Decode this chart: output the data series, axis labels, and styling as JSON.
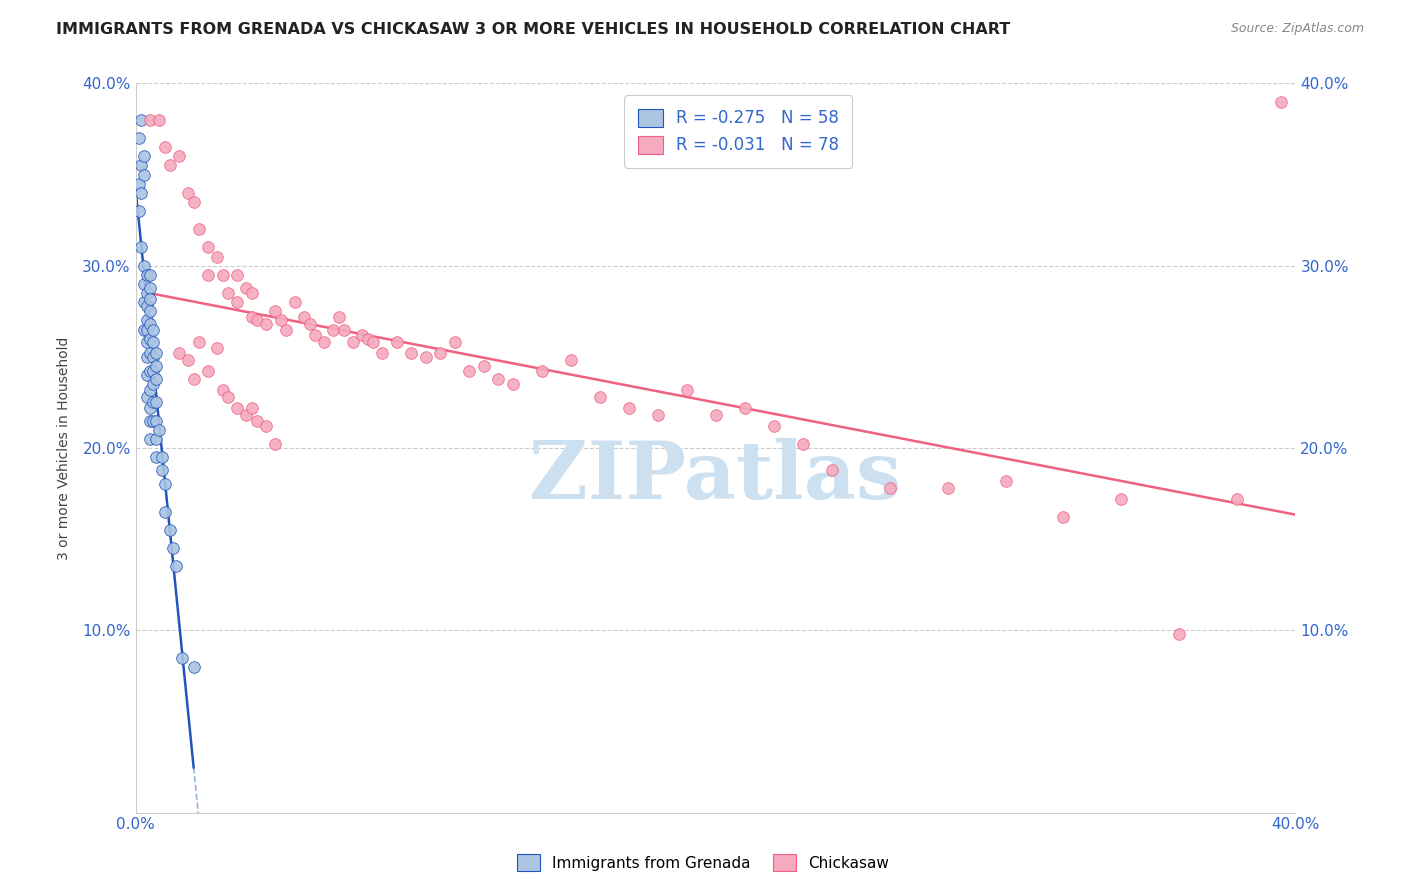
{
  "title": "IMMIGRANTS FROM GRENADA VS CHICKASAW 3 OR MORE VEHICLES IN HOUSEHOLD CORRELATION CHART",
  "source": "Source: ZipAtlas.com",
  "ylabel": "3 or more Vehicles in Household",
  "xlim": [
    0.0,
    0.4
  ],
  "ylim": [
    0.0,
    0.4
  ],
  "xtick_vals": [
    0.0,
    0.08,
    0.16,
    0.24,
    0.32,
    0.4
  ],
  "ytick_vals": [
    0.0,
    0.1,
    0.2,
    0.3,
    0.4
  ],
  "series1_color": "#aac4e2",
  "series2_color": "#f5aabf",
  "trendline1_color": "#2255bb",
  "trendline2_color": "#f06080",
  "watermark": "ZIPatlas",
  "watermark_color": "#cce0f0",
  "series1_label": "Immigrants from Grenada",
  "series2_label": "Chickasaw",
  "legend_line1": "R = -0.275   N = 58",
  "legend_line2": "R = -0.031   N = 78",
  "grenada_x": [
    0.001,
    0.001,
    0.001,
    0.002,
    0.002,
    0.002,
    0.002,
    0.003,
    0.003,
    0.003,
    0.003,
    0.003,
    0.003,
    0.004,
    0.004,
    0.004,
    0.004,
    0.004,
    0.004,
    0.004,
    0.004,
    0.004,
    0.005,
    0.005,
    0.005,
    0.005,
    0.005,
    0.005,
    0.005,
    0.005,
    0.005,
    0.005,
    0.005,
    0.005,
    0.006,
    0.006,
    0.006,
    0.006,
    0.006,
    0.006,
    0.006,
    0.007,
    0.007,
    0.007,
    0.007,
    0.007,
    0.007,
    0.007,
    0.008,
    0.009,
    0.009,
    0.01,
    0.01,
    0.012,
    0.013,
    0.014,
    0.016,
    0.02
  ],
  "grenada_y": [
    0.37,
    0.345,
    0.33,
    0.38,
    0.355,
    0.34,
    0.31,
    0.36,
    0.35,
    0.3,
    0.29,
    0.28,
    0.265,
    0.295,
    0.285,
    0.278,
    0.27,
    0.265,
    0.258,
    0.25,
    0.24,
    0.228,
    0.295,
    0.288,
    0.282,
    0.275,
    0.268,
    0.26,
    0.252,
    0.242,
    0.232,
    0.222,
    0.215,
    0.205,
    0.265,
    0.258,
    0.25,
    0.242,
    0.235,
    0.225,
    0.215,
    0.252,
    0.245,
    0.238,
    0.225,
    0.215,
    0.205,
    0.195,
    0.21,
    0.195,
    0.188,
    0.18,
    0.165,
    0.155,
    0.145,
    0.135,
    0.085,
    0.08
  ],
  "chickasaw_x": [
    0.005,
    0.008,
    0.01,
    0.012,
    0.015,
    0.018,
    0.02,
    0.022,
    0.025,
    0.025,
    0.028,
    0.03,
    0.032,
    0.035,
    0.035,
    0.038,
    0.04,
    0.04,
    0.042,
    0.045,
    0.048,
    0.05,
    0.052,
    0.055,
    0.058,
    0.06,
    0.062,
    0.065,
    0.068,
    0.07,
    0.072,
    0.075,
    0.078,
    0.08,
    0.082,
    0.085,
    0.09,
    0.095,
    0.1,
    0.105,
    0.11,
    0.115,
    0.12,
    0.125,
    0.13,
    0.14,
    0.15,
    0.16,
    0.17,
    0.18,
    0.19,
    0.2,
    0.21,
    0.22,
    0.23,
    0.24,
    0.26,
    0.28,
    0.3,
    0.32,
    0.34,
    0.36,
    0.38,
    0.395,
    0.015,
    0.018,
    0.02,
    0.022,
    0.025,
    0.028,
    0.03,
    0.032,
    0.035,
    0.038,
    0.04,
    0.042,
    0.045,
    0.048
  ],
  "chickasaw_y": [
    0.38,
    0.38,
    0.365,
    0.355,
    0.36,
    0.34,
    0.335,
    0.32,
    0.31,
    0.295,
    0.305,
    0.295,
    0.285,
    0.295,
    0.28,
    0.288,
    0.272,
    0.285,
    0.27,
    0.268,
    0.275,
    0.27,
    0.265,
    0.28,
    0.272,
    0.268,
    0.262,
    0.258,
    0.265,
    0.272,
    0.265,
    0.258,
    0.262,
    0.26,
    0.258,
    0.252,
    0.258,
    0.252,
    0.25,
    0.252,
    0.258,
    0.242,
    0.245,
    0.238,
    0.235,
    0.242,
    0.248,
    0.228,
    0.222,
    0.218,
    0.232,
    0.218,
    0.222,
    0.212,
    0.202,
    0.188,
    0.178,
    0.178,
    0.182,
    0.162,
    0.172,
    0.098,
    0.172,
    0.39,
    0.252,
    0.248,
    0.238,
    0.258,
    0.242,
    0.255,
    0.232,
    0.228,
    0.222,
    0.218,
    0.222,
    0.215,
    0.212,
    0.202
  ]
}
